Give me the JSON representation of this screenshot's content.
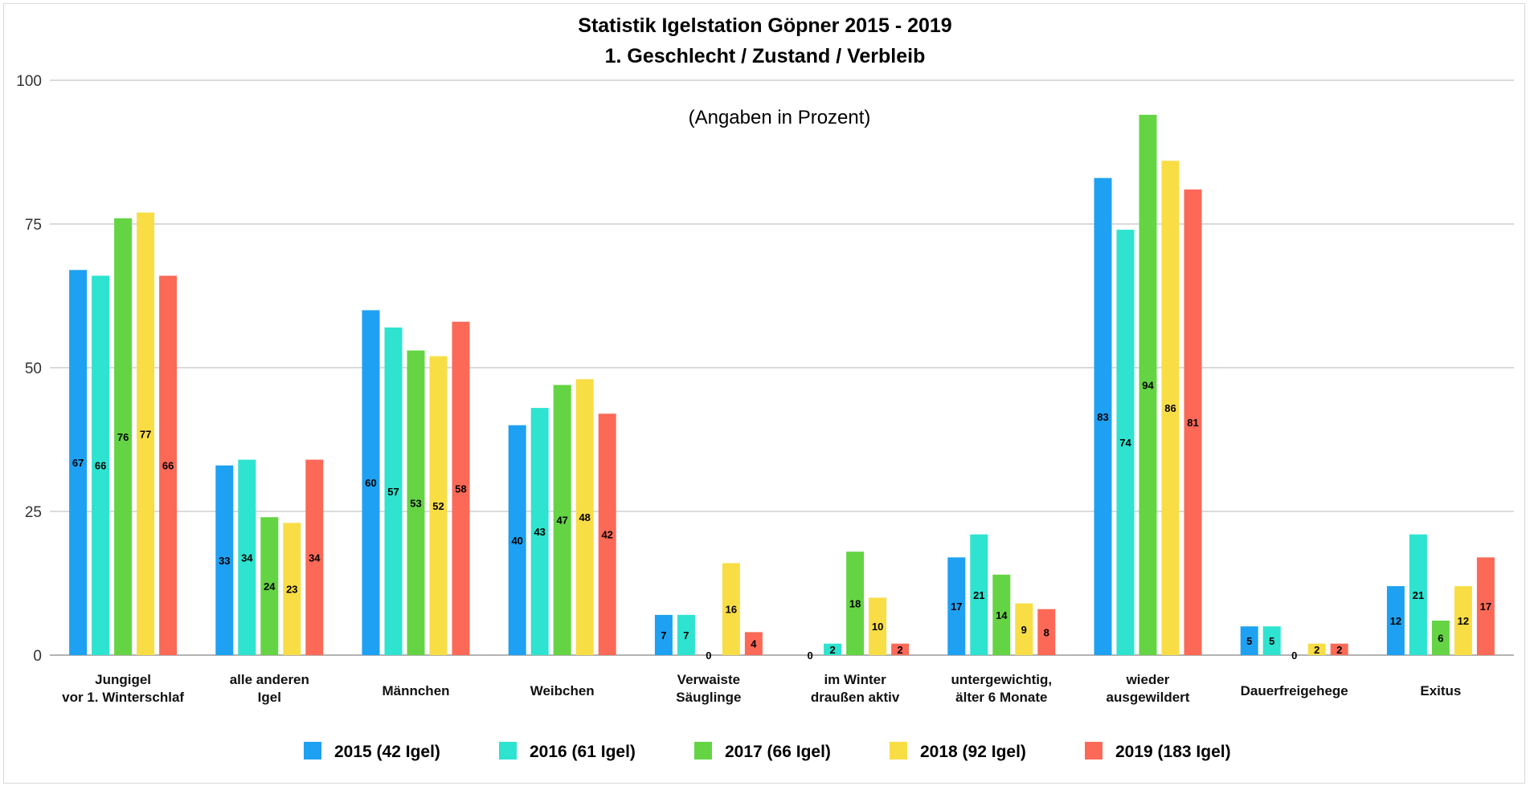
{
  "chart_data": {
    "type": "bar",
    "title": [
      "Statistik Igelstation Göpner 2015 - 2019",
      "1.  Geschlecht / Zustand / Verbleib"
    ],
    "annotation": "(Angaben in Prozent)",
    "categories": [
      [
        "Jungigel",
        "vor 1. Winterschlaf"
      ],
      [
        "alle anderen",
        "Igel"
      ],
      [
        "Männchen"
      ],
      [
        "Weibchen"
      ],
      [
        "Verwaiste",
        "Säuglinge"
      ],
      [
        "im Winter",
        "draußen aktiv"
      ],
      [
        "untergewichtig,",
        "älter 6 Monate"
      ],
      [
        "wieder",
        "ausgewildert"
      ],
      [
        "Dauerfreigehege"
      ],
      [
        "Exitus"
      ]
    ],
    "series": [
      {
        "name": "2015 (42 Igel)",
        "color": "#1ea1f2",
        "values": [
          67,
          33,
          60,
          40,
          7,
          0,
          17,
          83,
          5,
          12
        ]
      },
      {
        "name": "2016 (61 Igel)",
        "color": "#2ee3cf",
        "values": [
          66,
          34,
          57,
          43,
          7,
          2,
          21,
          74,
          5,
          21
        ]
      },
      {
        "name": "2017 (66 Igel)",
        "color": "#65d444",
        "values": [
          76,
          24,
          53,
          47,
          0,
          18,
          14,
          94,
          0,
          6
        ]
      },
      {
        "name": "2018 (92 Igel)",
        "color": "#f9dd45",
        "values": [
          77,
          23,
          52,
          48,
          16,
          10,
          9,
          86,
          2,
          12
        ]
      },
      {
        "name": "2019 (183 Igel)",
        "color": "#fc6957",
        "values": [
          66,
          34,
          58,
          42,
          4,
          2,
          8,
          81,
          2,
          17
        ]
      }
    ],
    "ylim": [
      0,
      100
    ],
    "yticks": [
      0,
      25,
      50,
      75,
      100
    ],
    "grid": true,
    "legend_position": "bottom"
  }
}
